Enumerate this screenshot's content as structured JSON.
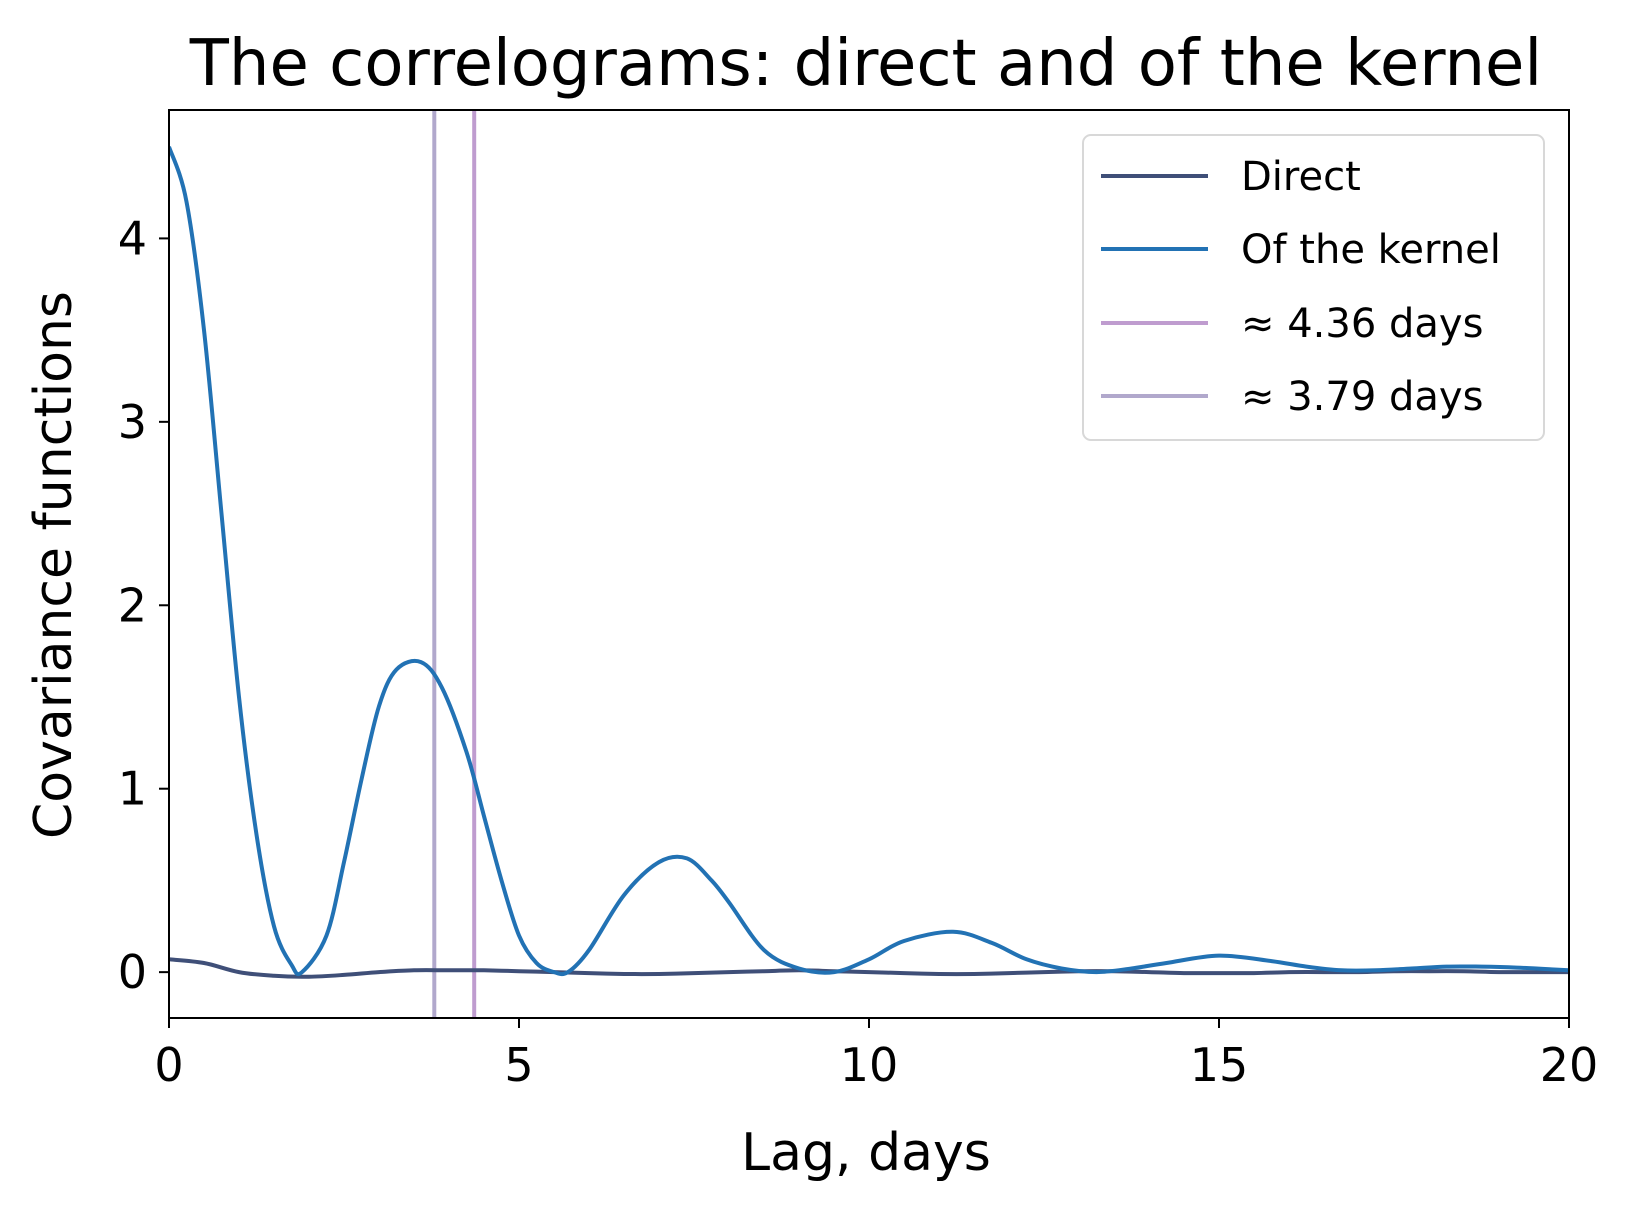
{
  "chart_data": {
    "type": "line",
    "title": "The correlograms: direct and of the kernel",
    "xlabel": "Lag, days",
    "ylabel": "Covariance functions",
    "xlim": [
      0,
      20
    ],
    "ylim": [
      -0.25,
      4.7
    ],
    "xticks": [
      "0",
      "5",
      "10",
      "15",
      "20"
    ],
    "yticks": [
      "0",
      "1",
      "2",
      "3",
      "4"
    ],
    "grid": false,
    "legend_position": "top-right",
    "series": [
      {
        "name": "Direct",
        "color": "#3f4f78",
        "x": [
          0,
          0.5,
          1.0,
          1.5,
          2.0,
          2.5,
          3.0,
          3.5,
          4.0,
          4.5,
          5.0,
          5.5,
          6.0,
          6.5,
          7.0,
          7.5,
          8.0,
          8.5,
          9.0,
          9.5,
          10.0,
          10.5,
          11.0,
          11.5,
          12.0,
          12.5,
          13.0,
          13.5,
          14.0,
          14.5,
          15.0,
          15.5,
          16.0,
          16.5,
          17.0,
          17.5,
          18.0,
          18.5,
          19.0,
          19.5,
          20.0
        ],
        "y": [
          0.07,
          0.05,
          0.0,
          -0.02,
          -0.025,
          -0.015,
          0.0,
          0.01,
          0.01,
          0.01,
          0.005,
          0.0,
          -0.005,
          -0.01,
          -0.01,
          -0.005,
          0.0,
          0.005,
          0.01,
          0.005,
          0.0,
          -0.005,
          -0.01,
          -0.01,
          -0.005,
          0.0,
          0.005,
          0.005,
          0.0,
          -0.005,
          -0.005,
          -0.005,
          0.0,
          0.0,
          0.0,
          0.005,
          0.005,
          0.005,
          0.0,
          0.0,
          0.0
        ]
      },
      {
        "name": "Of the kernel",
        "color": "#2272b4",
        "x": [
          0,
          0.25,
          0.5,
          0.75,
          1.0,
          1.25,
          1.5,
          1.75,
          1.9,
          2.25,
          2.5,
          2.75,
          3.0,
          3.25,
          3.6,
          3.9,
          4.25,
          4.5,
          4.75,
          5.0,
          5.25,
          5.5,
          5.7,
          6.0,
          6.5,
          7.0,
          7.4,
          7.75,
          8.0,
          8.5,
          9.0,
          9.5,
          10.0,
          10.5,
          11.2,
          11.75,
          12.25,
          12.75,
          13.25,
          13.75,
          14.25,
          15.0,
          15.75,
          16.25,
          16.75,
          17.25,
          17.75,
          18.25,
          18.75,
          19.25,
          19.75,
          20.0
        ],
        "y": [
          4.5,
          4.2,
          3.5,
          2.5,
          1.5,
          0.75,
          0.25,
          0.04,
          0.0,
          0.2,
          0.6,
          1.05,
          1.45,
          1.65,
          1.69,
          1.55,
          1.2,
          0.85,
          0.5,
          0.2,
          0.05,
          0.0,
          0.0,
          0.12,
          0.42,
          0.6,
          0.62,
          0.5,
          0.38,
          0.12,
          0.02,
          0.0,
          0.07,
          0.17,
          0.22,
          0.16,
          0.07,
          0.02,
          0.0,
          0.02,
          0.05,
          0.09,
          0.06,
          0.03,
          0.01,
          0.01,
          0.02,
          0.03,
          0.03,
          0.025,
          0.015,
          0.01
        ]
      }
    ],
    "vlines": [
      {
        "name": "≈ 4.36 days",
        "x": 4.36,
        "color": "#bf9ccf"
      },
      {
        "name": "≈ 3.79 days",
        "x": 3.79,
        "color": "#b1a8cc"
      }
    ]
  }
}
